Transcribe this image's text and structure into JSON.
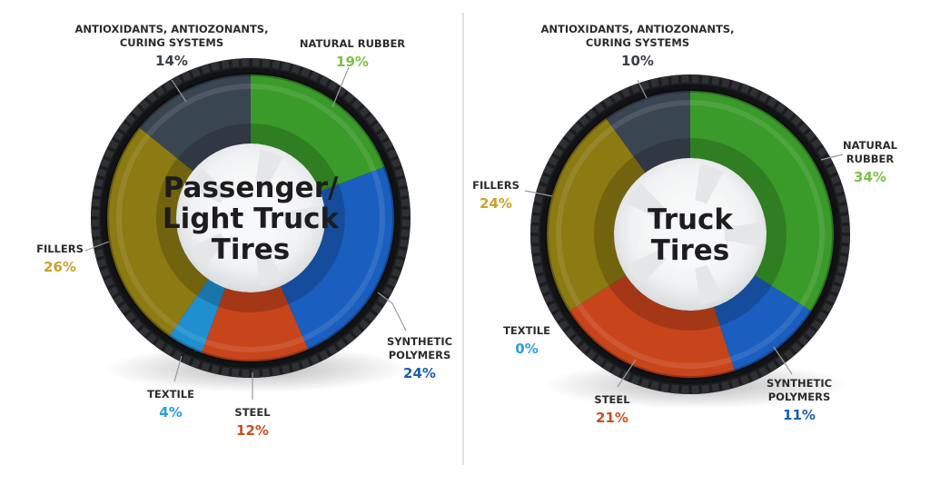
{
  "colors": {
    "natural_rubber": "#3a9a2a",
    "synthetic_polymers": "#1a5fbf",
    "steel": "#c8451c",
    "textile": "#1f8fd0",
    "fillers": "#8c7a12",
    "antioxidants": "#3a4552",
    "pct_natural_rubber": "#7ac143",
    "pct_synthetic_polymers": "#1b5eab",
    "pct_steel": "#c8501e",
    "pct_textile": "#2a9fd8",
    "pct_fillers": "#c9a227",
    "pct_antioxidants": "#3a3f45"
  },
  "chart_data": [
    {
      "type": "pie",
      "title_lines": [
        "Passenger/",
        "Light Truck",
        "Tires"
      ],
      "slices": [
        {
          "key": "natural_rubber",
          "label_lines": [
            "NATURAL RUBBER"
          ],
          "value": 19,
          "pct": "19%"
        },
        {
          "key": "synthetic_polymers",
          "label_lines": [
            "SYNTHETIC",
            "POLYMERS"
          ],
          "value": 24,
          "pct": "24%"
        },
        {
          "key": "steel",
          "label_lines": [
            "STEEL"
          ],
          "value": 12,
          "pct": "12%"
        },
        {
          "key": "textile",
          "label_lines": [
            "TEXTILE"
          ],
          "value": 4,
          "pct": "4%"
        },
        {
          "key": "fillers",
          "label_lines": [
            "FILLERS"
          ],
          "value": 26,
          "pct": "26%"
        },
        {
          "key": "antioxidants",
          "label_lines": [
            "ANTIOXIDANTS, ANTIOZONANTS,",
            "CURING SYSTEMS"
          ],
          "value": 14,
          "pct": "14%"
        }
      ]
    },
    {
      "type": "pie",
      "title_lines": [
        "Truck",
        "Tires"
      ],
      "slices": [
        {
          "key": "natural_rubber",
          "label_lines": [
            "NATURAL",
            "RUBBER"
          ],
          "value": 34,
          "pct": "34%"
        },
        {
          "key": "synthetic_polymers",
          "label_lines": [
            "SYNTHETIC",
            "POLYMERS"
          ],
          "value": 11,
          "pct": "11%"
        },
        {
          "key": "steel",
          "label_lines": [
            "STEEL"
          ],
          "value": 21,
          "pct": "21%"
        },
        {
          "key": "textile",
          "label_lines": [
            "TEXTILE"
          ],
          "value": 0,
          "pct": "0%"
        },
        {
          "key": "fillers",
          "label_lines": [
            "FILLERS"
          ],
          "value": 24,
          "pct": "24%"
        },
        {
          "key": "antioxidants",
          "label_lines": [
            "ANTIOXIDANTS, ANTIOZONANTS,",
            "CURING SYSTEMS"
          ],
          "value": 10,
          "pct": "10%"
        }
      ]
    }
  ]
}
